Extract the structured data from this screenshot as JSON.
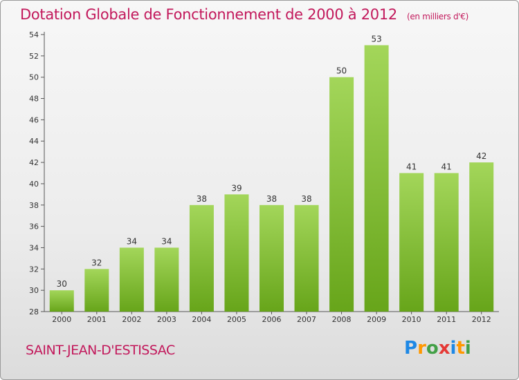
{
  "chart_data": {
    "type": "bar",
    "title": "Dotation Globale de Fonctionnement de 2000 à 2012",
    "subtitle": "(en milliers d'€)",
    "categories": [
      "2000",
      "2001",
      "2002",
      "2003",
      "2004",
      "2005",
      "2006",
      "2007",
      "2008",
      "2009",
      "2010",
      "2011",
      "2012"
    ],
    "values": [
      30,
      32,
      34,
      34,
      38,
      39,
      38,
      38,
      50,
      53,
      41,
      41,
      42
    ],
    "ylim": [
      28,
      54
    ],
    "yticks": [
      28,
      30,
      32,
      34,
      36,
      38,
      40,
      42,
      44,
      46,
      48,
      50,
      52,
      54
    ],
    "grid": false,
    "bar_color": "#8cc63f"
  },
  "footer": {
    "commune": "SAINT-JEAN-D'ESTISSAC",
    "logo_letters": [
      "P",
      "r",
      "o",
      "x",
      "i",
      "t",
      "i"
    ],
    "logo_colors": [
      "#1e88e5",
      "#ff9800",
      "#43a047",
      "#e53935",
      "#1e88e5",
      "#ff9800",
      "#43a047"
    ]
  }
}
